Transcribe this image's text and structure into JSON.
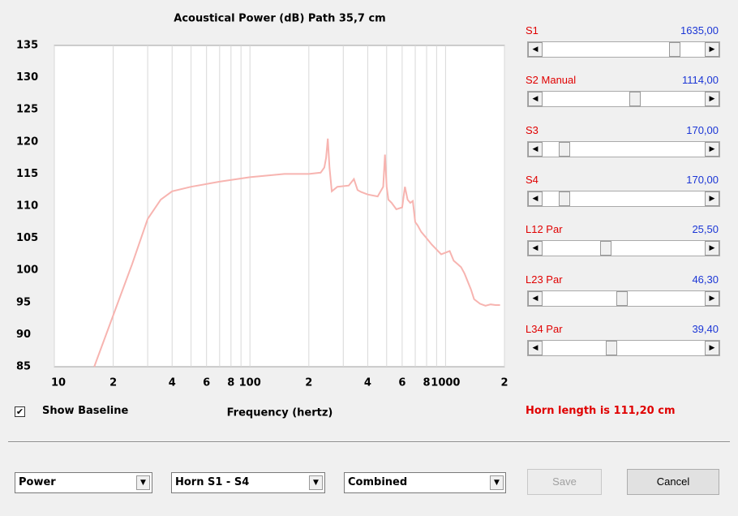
{
  "chart_data": {
    "type": "line",
    "title": "Acoustical Power (dB)   Path 35,7 cm",
    "xlabel": "Frequency (hertz)",
    "xscale": "log",
    "color": "#f7b4b0",
    "xlim": [
      10,
      2000
    ],
    "ylim": [
      85,
      135
    ],
    "xticks": [
      10,
      {
        "value": 20,
        "label": "2"
      },
      {
        "value": 40,
        "label": "4"
      },
      {
        "value": 60,
        "label": "6"
      },
      {
        "value": 80,
        "label": "8"
      },
      100,
      {
        "value": 200,
        "label": "2"
      },
      {
        "value": 400,
        "label": "4"
      },
      {
        "value": 600,
        "label": "6"
      },
      {
        "value": 800,
        "label": "8"
      },
      1000,
      {
        "value": 2000,
        "label": "2"
      }
    ],
    "xminor": [
      30,
      50,
      70,
      90,
      300,
      500,
      700,
      900
    ],
    "yticks": [
      85,
      90,
      95,
      100,
      105,
      110,
      115,
      120,
      125,
      130,
      135
    ],
    "grid": true,
    "x": [
      16,
      20,
      25,
      30,
      35,
      40,
      50,
      70,
      100,
      150,
      200,
      230,
      240,
      245,
      250,
      255,
      262,
      280,
      320,
      340,
      355,
      370,
      400,
      450,
      480,
      490,
      500,
      510,
      530,
      560,
      600,
      620,
      640,
      660,
      680,
      700,
      720,
      750,
      800,
      850,
      950,
      1050,
      1100,
      1150,
      1200,
      1250,
      1350,
      1400,
      1500,
      1600,
      1700,
      1800,
      1900
    ],
    "values": [
      85,
      93,
      101,
      108,
      111,
      112.3,
      113,
      113.8,
      114.5,
      115,
      115,
      115.2,
      116,
      117.5,
      120.5,
      116,
      112.3,
      113,
      113.2,
      114.2,
      112.5,
      112.2,
      111.8,
      111.5,
      113,
      118,
      113,
      111,
      110.5,
      109.5,
      109.8,
      113,
      111,
      110.5,
      110.8,
      107.5,
      107,
      106,
      105,
      104,
      102.5,
      103,
      101.5,
      101,
      100.5,
      99.5,
      97,
      95.5,
      94.8,
      94.5,
      94.7,
      94.6,
      94.6
    ]
  },
  "sliders": [
    {
      "label": "S1",
      "value": "1635,00"
    },
    {
      "label": "S2  Manual",
      "value": "1114,00"
    },
    {
      "label": "S3",
      "value": "170,00"
    },
    {
      "label": "S4",
      "value": "170,00"
    },
    {
      "label": "L12  Par",
      "value": "25,50"
    },
    {
      "label": "L23  Par",
      "value": "46,30"
    },
    {
      "label": "L34  Par",
      "value": "39,40"
    }
  ],
  "show_baseline": {
    "label": "Show Baseline",
    "checked": true
  },
  "horn_length": "Horn length is 111,20 cm",
  "dropdowns": [
    "Power",
    "Horn S1 - S4",
    "Combined"
  ],
  "buttons": [
    "Save",
    "Cancel"
  ]
}
